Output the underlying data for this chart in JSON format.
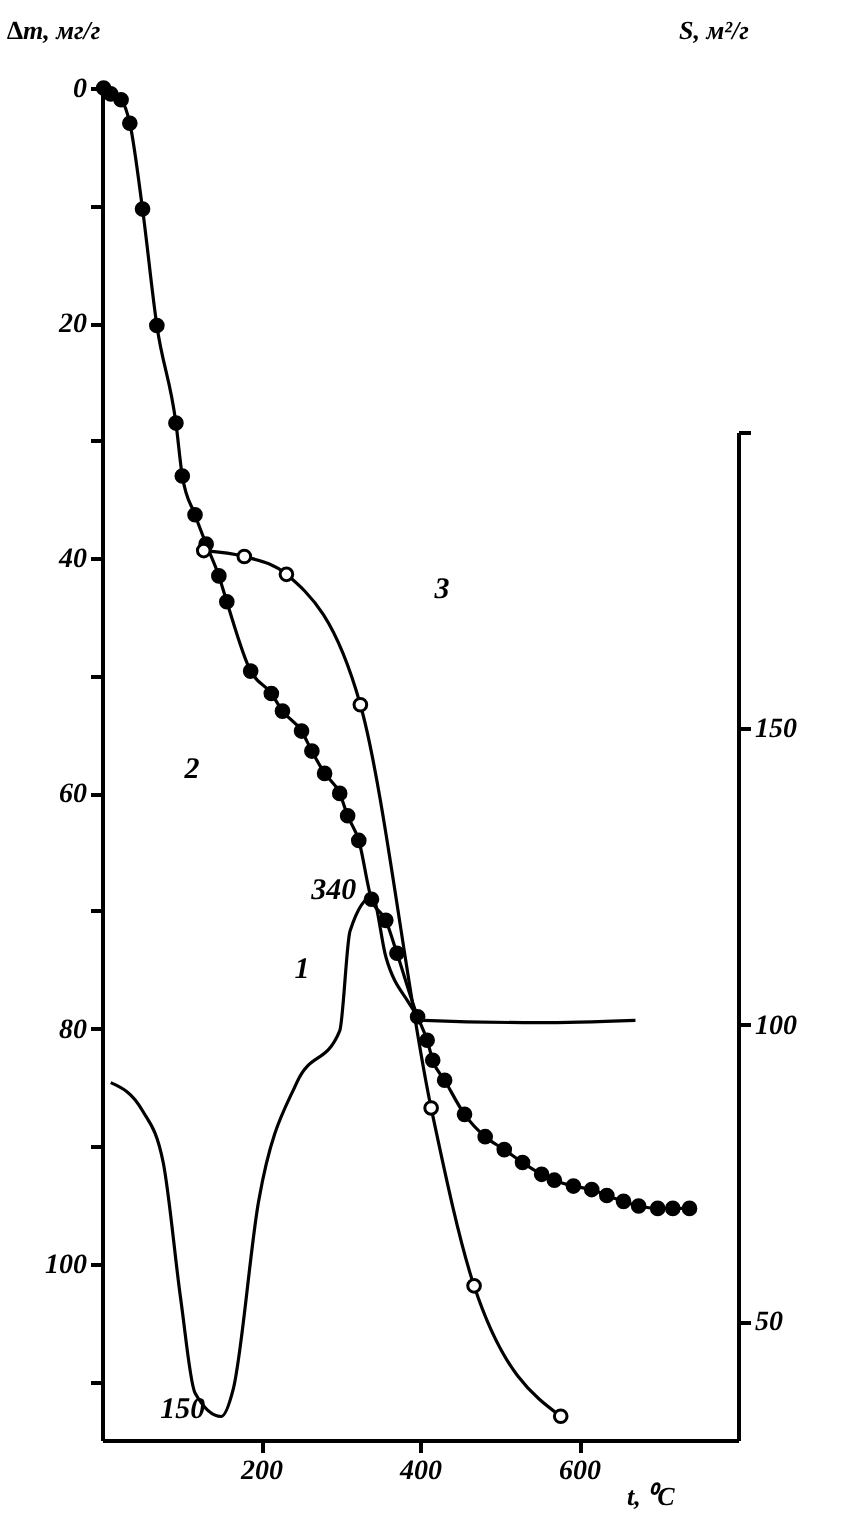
{
  "chart_data": {
    "type": "line",
    "xlabel": "t, ⁰C",
    "ylabel": "∆m, мг/г",
    "y2label": "S, м²/г",
    "xlim": [
      0,
      800
    ],
    "xticks": [
      200,
      400,
      600
    ],
    "ylim": [
      115,
      0
    ],
    "yticks": [
      0,
      {
        "value": 10,
        "label": null
      },
      20,
      {
        "value": 30,
        "label": null
      },
      40,
      {
        "value": 50,
        "label": null
      },
      60,
      {
        "value": 70,
        "label": null
      },
      80,
      {
        "value": 90,
        "label": null
      },
      100,
      {
        "value": 110,
        "label": null
      }
    ],
    "y2lim": [
      30,
      200
    ],
    "y2ticks": [
      50,
      100,
      150,
      {
        "value": 200,
        "label": null
      }
    ],
    "grid": false,
    "series": [
      {
        "color": "#000000",
        "marker": "none",
        "x": [
          11,
          51,
          77,
          99,
          117,
          150,
          165,
          197,
          245,
          299,
          312,
          340,
          357,
          384,
          405,
          550,
          671
        ],
        "values": [
          84.6,
          87,
          91.4,
          103,
          111,
          113,
          110.7,
          94.7,
          84.6,
          80.2,
          71.7,
          68.8,
          73.9,
          77.6,
          79.3,
          79.5,
          79.3
        ]
      },
      {
        "color": "#000000",
        "marker": "circle",
        "x": [
          2,
          11,
          24,
          35,
          51,
          69,
          93,
          101,
          117,
          131,
          147,
          157,
          187,
          213,
          227,
          251,
          264,
          280,
          299,
          309,
          323,
          339,
          357,
          371,
          397,
          409,
          416,
          431,
          456,
          482,
          506,
          529,
          553,
          569,
          593,
          616,
          635,
          656,
          675,
          699,
          718,
          739
        ],
        "values": [
          0,
          0.5,
          1,
          3,
          10.3,
          20.2,
          28.5,
          33,
          36.3,
          38.8,
          41.5,
          43.7,
          49.6,
          51.5,
          53,
          54.7,
          56.4,
          58.3,
          60,
          61.9,
          64,
          69,
          70.8,
          73.6,
          79,
          81,
          82.7,
          84.4,
          87.3,
          89.2,
          90.3,
          91.4,
          92.4,
          92.9,
          93.4,
          93.7,
          94.2,
          94.7,
          95.1,
          95.3,
          95.3,
          95.3
        ]
      },
      {
        "color": "#000000",
        "marker": "circle",
        "axis": "y2",
        "x": [
          128,
          179,
          232,
          325,
          414,
          468,
          577
        ],
        "values": [
          180,
          179,
          176,
          154,
          86,
          56,
          34
        ]
      }
    ],
    "annotations": [
      {
        "text": "150",
        "x": 150,
        "y": 113
      },
      {
        "text": "340",
        "x": 340,
        "y": 68.8
      },
      "1",
      "2",
      "3"
    ]
  }
}
